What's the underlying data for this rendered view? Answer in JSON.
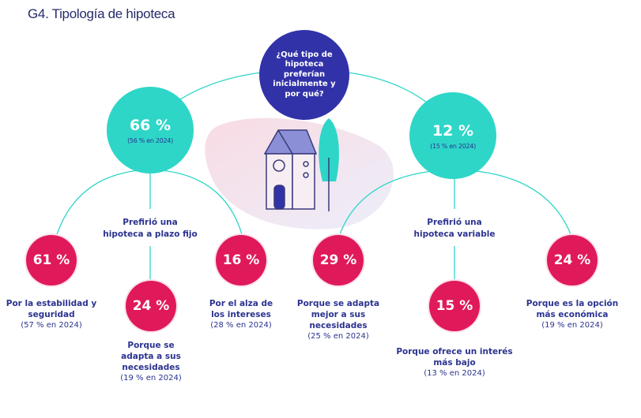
{
  "title": "G4. Tipología de hipoteca",
  "question": "¿Qué tipo de hipoteca preferían inicialmente y por qué?",
  "colors": {
    "question": "#3232a8",
    "main": "#2ed6c8",
    "reason": "#e0195a",
    "text": "#2b3390"
  },
  "fixed": {
    "value": "66 %",
    "previous": "(56 % en 2024)",
    "label": "Prefirió una hipoteca a plazo fijo",
    "reasons": [
      {
        "value": "61 %",
        "label": "Por la estabilidad y seguridad",
        "previous": "(57 % en 2024)"
      },
      {
        "value": "24 %",
        "label": "Porque se adapta a sus necesidades",
        "previous": "(19 % en 2024)"
      },
      {
        "value": "16 %",
        "label": "Por el alza de los intereses",
        "previous": "(28 % en 2024)"
      }
    ]
  },
  "variable": {
    "value": "12 %",
    "previous": "(15 % en 2024)",
    "label": "Prefirió una hipoteca variable",
    "reasons": [
      {
        "value": "29 %",
        "label": "Porque se adapta mejor a sus necesidades",
        "previous": "(25 % en 2024)"
      },
      {
        "value": "15 %",
        "label": "Porque ofrece un interés más bajo",
        "previous": "(13 % en 2024)"
      },
      {
        "value": "24 %",
        "label": "Porque es la opción más económica",
        "previous": "(19 % en 2024)"
      }
    ]
  },
  "illustration": "house-with-tree"
}
